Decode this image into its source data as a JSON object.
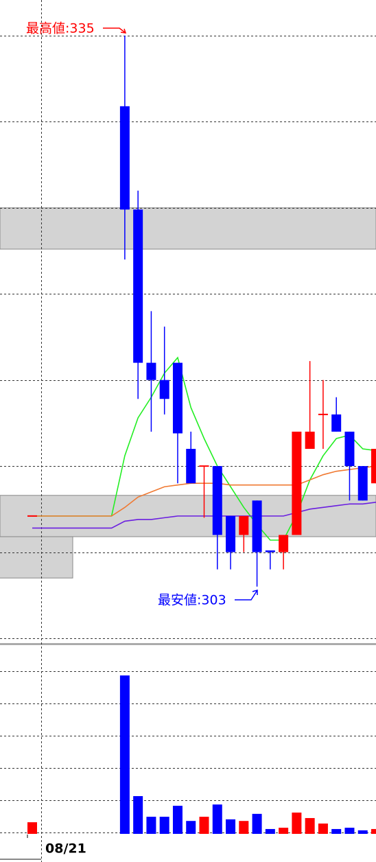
{
  "chart_data": {
    "type": "candlestick",
    "categories": [
      null,
      null,
      null,
      null,
      null,
      null,
      null,
      null,
      null,
      null,
      null,
      null,
      null,
      null,
      null,
      null,
      null,
      null,
      null,
      null,
      null,
      null,
      null,
      null,
      null,
      null,
      null
    ],
    "date_label": "08/21",
    "open": [
      307.1,
      null,
      null,
      null,
      null,
      null,
      null,
      330.9,
      324.9,
      316.0,
      315.0,
      316.0,
      311.0,
      310.0,
      310.0,
      307.1,
      306.0,
      308.0,
      305.1,
      305.0,
      306.0,
      311.0,
      313.0,
      313.0,
      312.0,
      310.0,
      309.0
    ],
    "high": [
      307.1,
      null,
      null,
      null,
      null,
      null,
      null,
      335.0,
      326.0,
      319.0,
      318.1,
      316.0,
      312.0,
      310.0,
      310.0,
      307.1,
      307.1,
      308.0,
      305.1,
      306.0,
      312.0,
      316.1,
      315.0,
      314.0,
      312.0,
      310.0,
      311.0
    ],
    "low": [
      307.1,
      null,
      null,
      null,
      null,
      null,
      null,
      322.0,
      313.9,
      312.0,
      313.0,
      309.0,
      309.0,
      307.0,
      304.0,
      304.0,
      305.0,
      303.0,
      304.0,
      304.0,
      306.0,
      311.0,
      311.0,
      312.0,
      308.0,
      308.0,
      309.0
    ],
    "close": [
      307.1,
      null,
      null,
      null,
      null,
      null,
      null,
      324.9,
      316.0,
      315.0,
      313.9,
      311.9,
      309.0,
      310.0,
      306.0,
      305.0,
      307.1,
      305.0,
      305.0,
      306.0,
      312.0,
      312.0,
      313.0,
      312.0,
      310.0,
      308.0,
      311.0
    ],
    "up_color": "#ff0000",
    "down_color": "#0000ff",
    "moving_averages": [
      {
        "color": "#22ee22",
        "values": [
          307.1,
          307.1,
          307.1,
          307.1,
          307.1,
          307.1,
          307.1,
          310.6,
          312.8,
          314.0,
          315.4,
          316.3,
          313.4,
          311.6,
          310.0,
          308.8,
          307.6,
          306.6,
          305.7,
          305.7,
          307.2,
          309.2,
          310.6,
          311.6,
          311.8,
          311.0,
          310.9
        ]
      },
      {
        "color": "#f07830",
        "values": [
          307.1,
          307.1,
          307.1,
          307.1,
          307.1,
          307.1,
          307.1,
          307.6,
          308.2,
          308.5,
          308.8,
          308.9,
          309.0,
          309.0,
          309.0,
          308.9,
          308.9,
          308.9,
          308.9,
          308.9,
          308.9,
          309.2,
          309.5,
          309.7,
          309.8,
          309.9,
          310.0
        ]
      },
      {
        "color": "#6a1ee0",
        "values": [
          306.4,
          306.4,
          306.4,
          306.4,
          306.4,
          306.4,
          306.4,
          306.8,
          306.9,
          306.9,
          307.0,
          307.1,
          307.1,
          307.1,
          307.1,
          307.1,
          307.1,
          307.1,
          307.1,
          307.1,
          307.3,
          307.5,
          307.6,
          307.7,
          307.8,
          307.8,
          307.9
        ]
      }
    ],
    "zones": [
      {
        "lo": 322.6,
        "hi": 325.0
      },
      {
        "lo": 305.9,
        "hi": 308.3
      }
    ],
    "short_zones": [
      {
        "lo": 303.5,
        "hi": 305.9
      }
    ],
    "ylim": [
      300,
      337.07
    ],
    "yticks": [
      300,
      305,
      310,
      315,
      320,
      325,
      330,
      335
    ],
    "high_annotation": "最高値:335",
    "low_annotation": "最安値:303",
    "volume": {
      "values": [
        0.36,
        null,
        null,
        null,
        null,
        null,
        null,
        4.91,
        1.17,
        0.53,
        0.53,
        0.87,
        0.4,
        0.53,
        0.91,
        0.45,
        0.4,
        0.62,
        0.15,
        0.19,
        0.66,
        0.49,
        0.32,
        0.15,
        0.19,
        0.11,
        0.15
      ],
      "ylim": [
        0,
        5.85
      ],
      "yticks": [
        0,
        1,
        2,
        3,
        4,
        5
      ]
    }
  }
}
